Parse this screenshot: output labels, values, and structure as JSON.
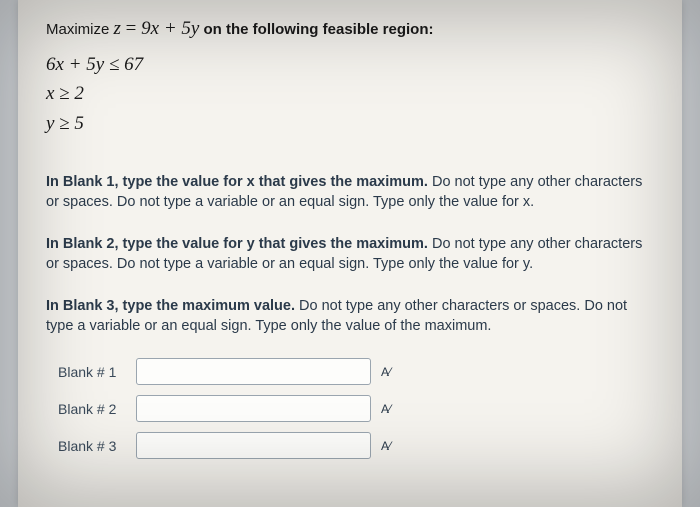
{
  "problem": {
    "prompt_prefix": "Maximize ",
    "objective_lhs": "z",
    "objective_eq": " = ",
    "objective_rhs": "9x + 5y",
    "prompt_suffix": " on the following feasible region:",
    "constraints": [
      "6x + 5y ≤ 67",
      "x ≥ 2",
      "y ≥ 5"
    ]
  },
  "instructions": {
    "b1_bold": "In Blank 1, type the value for x that gives the maximum.",
    "b1_rest": " Do not type any other characters or spaces. Do not type a variable or an equal sign. Type only the value for x.",
    "b2_bold": "In Blank 2, type the value for y that gives the maximum.",
    "b2_rest": " Do not type any other characters or spaces. Do not type a variable or an equal sign. Type only the value for y.",
    "b3_bold": "In Blank 3, type the maximum value.",
    "b3_rest": " Do not type any other characters or spaces. Do not type a variable or an equal sign. Type only the value of the maximum."
  },
  "blanks": {
    "label1": "Blank # 1",
    "label2": "Blank # 2",
    "label3": "Blank # 3",
    "value1": "",
    "value2": "",
    "value3": ""
  },
  "icon_glyph": "A⁄"
}
